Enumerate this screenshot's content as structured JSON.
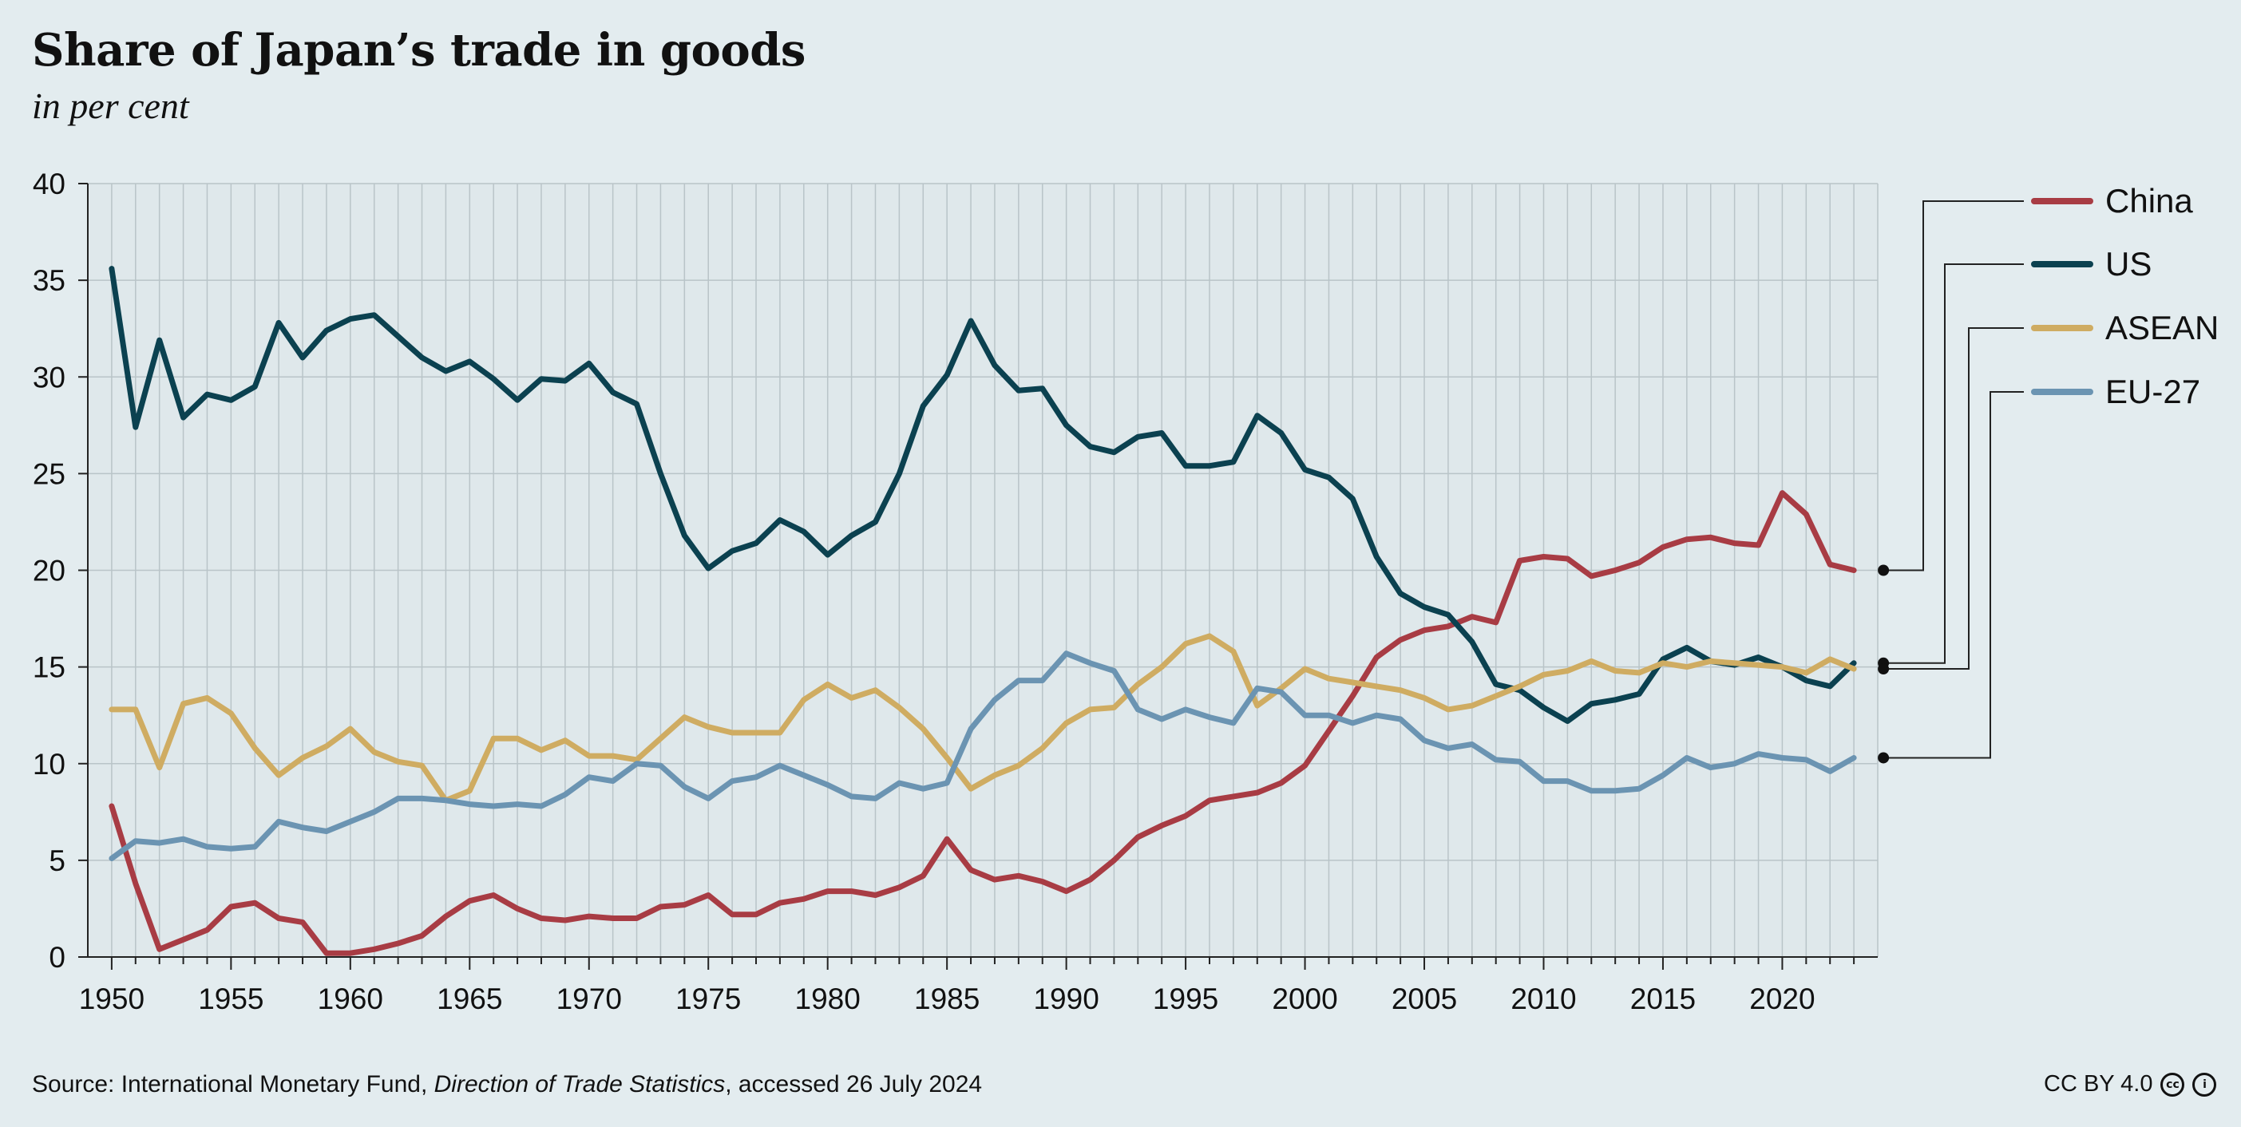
{
  "header": {
    "title": "Share of Japan’s trade in goods",
    "subtitle": "in per cent"
  },
  "footer": {
    "source_prefix": "Source: International Monetary Fund, ",
    "source_italic": "Direction of Trade Statistics",
    "source_suffix": ", accessed 26 July 2024",
    "license": "CC BY 4.0",
    "license_icons": [
      "creative-commons-icon",
      "attribution-icon"
    ]
  },
  "chart_data": {
    "type": "line",
    "title": "Share of Japan’s trade in goods",
    "subtitle": "in per cent",
    "xlabel": "",
    "ylabel": "",
    "xlim": [
      1950,
      2023
    ],
    "ylim": [
      0,
      40
    ],
    "x_ticks": [
      1950,
      1955,
      1960,
      1965,
      1970,
      1975,
      1980,
      1985,
      1990,
      1995,
      2000,
      2005,
      2010,
      2015,
      2020
    ],
    "y_ticks": [
      0,
      5,
      10,
      15,
      20,
      25,
      30,
      35,
      40
    ],
    "grid": true,
    "legend_position": "right",
    "x": [
      1950,
      1951,
      1952,
      1953,
      1954,
      1955,
      1956,
      1957,
      1958,
      1959,
      1960,
      1961,
      1962,
      1963,
      1964,
      1965,
      1966,
      1967,
      1968,
      1969,
      1970,
      1971,
      1972,
      1973,
      1974,
      1975,
      1976,
      1977,
      1978,
      1979,
      1980,
      1981,
      1982,
      1983,
      1984,
      1985,
      1986,
      1987,
      1988,
      1989,
      1990,
      1991,
      1992,
      1993,
      1994,
      1995,
      1996,
      1997,
      1998,
      1999,
      2000,
      2001,
      2002,
      2003,
      2004,
      2005,
      2006,
      2007,
      2008,
      2009,
      2010,
      2011,
      2012,
      2013,
      2014,
      2015,
      2016,
      2017,
      2018,
      2019,
      2020,
      2021,
      2022,
      2023
    ],
    "series": [
      {
        "name": "China",
        "color": "#a83c44",
        "values": [
          7.8,
          3.8,
          0.4,
          0.9,
          1.4,
          2.6,
          2.8,
          2.0,
          1.8,
          0.2,
          0.2,
          0.4,
          0.7,
          1.1,
          2.1,
          2.9,
          3.2,
          2.5,
          2.0,
          1.9,
          2.1,
          2.0,
          2.0,
          2.6,
          2.7,
          3.2,
          2.2,
          2.2,
          2.8,
          3.0,
          3.4,
          3.4,
          3.2,
          3.6,
          4.2,
          6.1,
          4.5,
          4.0,
          4.2,
          3.9,
          3.4,
          4.0,
          5.0,
          6.2,
          6.8,
          7.3,
          8.1,
          8.3,
          8.5,
          9.0,
          9.9,
          11.7,
          13.5,
          15.5,
          16.4,
          16.9,
          17.1,
          17.6,
          17.3,
          20.5,
          20.7,
          20.6,
          19.7,
          20.0,
          20.4,
          21.2,
          21.6,
          21.7,
          21.4,
          21.3,
          24.0,
          22.9,
          20.3,
          20.0
        ]
      },
      {
        "name": "US",
        "color": "#0b4150",
        "values": [
          35.6,
          27.4,
          31.9,
          27.9,
          29.1,
          28.8,
          29.5,
          32.8,
          31.0,
          32.4,
          33.0,
          33.2,
          32.1,
          31.0,
          30.3,
          30.8,
          29.9,
          28.8,
          29.9,
          29.8,
          30.7,
          29.2,
          28.6,
          25.0,
          21.8,
          20.1,
          21.0,
          21.4,
          22.6,
          22.0,
          20.8,
          21.8,
          22.5,
          25.0,
          28.5,
          30.1,
          32.9,
          30.6,
          29.3,
          29.4,
          27.5,
          26.4,
          26.1,
          26.9,
          27.1,
          25.4,
          25.4,
          25.6,
          28.0,
          27.1,
          25.2,
          24.8,
          23.7,
          20.7,
          18.8,
          18.1,
          17.7,
          16.3,
          14.1,
          13.8,
          12.9,
          12.2,
          13.1,
          13.3,
          13.6,
          15.4,
          16.0,
          15.3,
          15.1,
          15.5,
          15.0,
          14.3,
          14.0,
          15.2
        ]
      },
      {
        "name": "ASEAN",
        "color": "#cfac62",
        "values": [
          12.8,
          12.8,
          9.8,
          13.1,
          13.4,
          12.6,
          10.8,
          9.4,
          10.3,
          10.9,
          11.8,
          10.6,
          10.1,
          9.9,
          8.1,
          8.6,
          11.3,
          11.3,
          10.7,
          11.2,
          10.4,
          10.4,
          10.2,
          11.3,
          12.4,
          11.9,
          11.6,
          11.6,
          11.6,
          13.3,
          14.1,
          13.4,
          13.8,
          12.9,
          11.8,
          10.3,
          8.7,
          9.4,
          9.9,
          10.8,
          12.1,
          12.8,
          12.9,
          14.1,
          15.0,
          16.2,
          16.6,
          15.8,
          13.0,
          13.9,
          14.9,
          14.4,
          14.2,
          14.0,
          13.8,
          13.4,
          12.8,
          13.0,
          13.5,
          14.0,
          14.6,
          14.8,
          15.3,
          14.8,
          14.7,
          15.2,
          15.0,
          15.3,
          15.2,
          15.1,
          15.0,
          14.7,
          15.4,
          14.9
        ]
      },
      {
        "name": "EU-27",
        "color": "#6b94b2",
        "values": [
          5.1,
          6.0,
          5.9,
          6.1,
          5.7,
          5.6,
          5.7,
          7.0,
          6.7,
          6.5,
          7.0,
          7.5,
          8.2,
          8.2,
          8.1,
          7.9,
          7.8,
          7.9,
          7.8,
          8.4,
          9.3,
          9.1,
          10.0,
          9.9,
          8.8,
          8.2,
          9.1,
          9.3,
          9.9,
          9.4,
          8.9,
          8.3,
          8.2,
          9.0,
          8.7,
          9.0,
          11.8,
          13.3,
          14.3,
          14.3,
          15.7,
          15.2,
          14.8,
          12.8,
          12.3,
          12.8,
          12.4,
          12.1,
          13.9,
          13.7,
          12.5,
          12.5,
          12.1,
          12.5,
          12.3,
          11.2,
          10.8,
          11.0,
          10.2,
          10.1,
          9.1,
          9.1,
          8.6,
          8.6,
          8.7,
          9.4,
          10.3,
          9.8,
          10.0,
          10.5,
          10.3,
          10.2,
          9.6,
          10.3
        ]
      }
    ]
  }
}
